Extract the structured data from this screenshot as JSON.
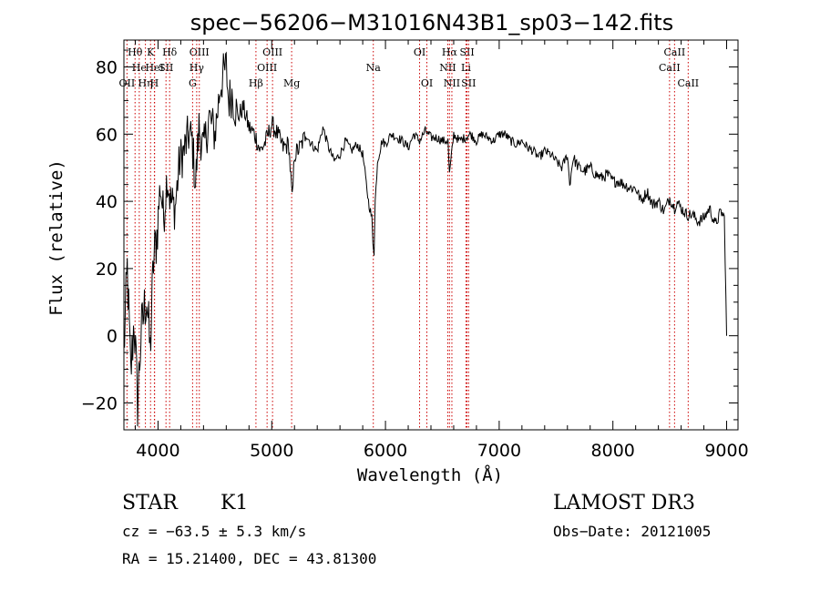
{
  "chart_data": {
    "type": "line",
    "title": "spec−56206−M31016N43B1_sp03−142.fits",
    "xlabel": "Wavelength (Å)",
    "ylabel": "Flux (relative)",
    "xlim": [
      3700,
      9100
    ],
    "ylim": [
      -28,
      88
    ],
    "xticks": [
      4000,
      5000,
      6000,
      7000,
      8000,
      9000
    ],
    "yticks": [
      -20,
      0,
      20,
      40,
      60,
      80
    ],
    "spectrum": {
      "x": [
        3700,
        3730,
        3760,
        3790,
        3820,
        3850,
        3880,
        3900,
        3930,
        3960,
        3990,
        4020,
        4050,
        4080,
        4110,
        4150,
        4190,
        4230,
        4270,
        4300,
        4330,
        4360,
        4400,
        4450,
        4500,
        4550,
        4600,
        4620,
        4650,
        4700,
        4750,
        4800,
        4850,
        4900,
        4950,
        5000,
        5050,
        5100,
        5150,
        5180,
        5200,
        5250,
        5300,
        5350,
        5400,
        5450,
        5500,
        5550,
        5600,
        5650,
        5700,
        5750,
        5800,
        5850,
        5880,
        5890,
        5900,
        5910,
        5930,
        5970,
        6000,
        6050,
        6100,
        6150,
        6200,
        6250,
        6300,
        6350,
        6400,
        6450,
        6500,
        6550,
        6563,
        6600,
        6650,
        6700,
        6750,
        6800,
        6850,
        6900,
        6950,
        7000,
        7050,
        7100,
        7150,
        7200,
        7250,
        7300,
        7350,
        7400,
        7450,
        7500,
        7550,
        7600,
        7620,
        7650,
        7700,
        7750,
        7800,
        7850,
        7900,
        7950,
        8000,
        8050,
        8100,
        8150,
        8200,
        8250,
        8300,
        8350,
        8400,
        8450,
        8500,
        8542,
        8560,
        8600,
        8650,
        8700,
        8750,
        8800,
        8850,
        8900,
        8950,
        8980,
        9000
      ],
      "y": [
        -5,
        20,
        -12,
        5,
        -20,
        0,
        8,
        12,
        -5,
        22,
        30,
        45,
        35,
        48,
        40,
        38,
        52,
        55,
        60,
        58,
        45,
        62,
        55,
        65,
        60,
        75,
        80,
        70,
        72,
        65,
        68,
        62,
        60,
        55,
        58,
        63,
        60,
        56,
        57,
        40,
        54,
        56,
        60,
        57,
        55,
        62,
        56,
        52,
        54,
        58,
        55,
        57,
        54,
        40,
        35,
        28,
        25,
        40,
        52,
        58,
        57,
        60,
        59,
        58,
        56,
        60,
        58,
        61,
        59,
        59,
        58,
        58,
        48,
        60,
        58,
        59,
        60,
        58,
        60,
        59,
        58,
        60,
        60,
        58,
        57,
        58,
        56,
        55,
        53,
        55,
        54,
        52,
        50,
        54,
        45,
        53,
        50,
        49,
        50,
        48,
        47,
        48,
        46,
        46,
        45,
        44,
        44,
        40,
        43,
        39,
        40,
        37,
        41,
        38,
        40,
        38,
        36,
        36,
        34,
        35,
        38,
        33,
        37,
        35,
        0
      ]
    },
    "line_markers": [
      {
        "label": "Hθ",
        "x": 3798,
        "row": 1
      },
      {
        "label": "OII",
        "x": 3727,
        "row": 3
      },
      {
        "label": "He",
        "x": 3835,
        "row": 2
      },
      {
        "label": "Hη",
        "x": 3889,
        "row": 3
      },
      {
        "label": "K",
        "x": 3934,
        "row": 1
      },
      {
        "label": "HeI",
        "x": 3970,
        "row": 2
      },
      {
        "label": "SII",
        "x": 4070,
        "row": 2
      },
      {
        "label": "Hδ",
        "x": 4102,
        "row": 1
      },
      {
        "label": "H",
        "x": 3968,
        "row": 3
      },
      {
        "label": "OIII",
        "x": 4363,
        "row": 1
      },
      {
        "label": "Hγ",
        "x": 4340,
        "row": 2
      },
      {
        "label": "G",
        "x": 4304,
        "row": 3
      },
      {
        "label": "Hβ",
        "x": 4861,
        "row": 3
      },
      {
        "label": "OIII",
        "x": 4959,
        "row": 2
      },
      {
        "label": "OIII",
        "x": 5007,
        "row": 1
      },
      {
        "label": "Mg",
        "x": 5175,
        "row": 3
      },
      {
        "label": "Na",
        "x": 5893,
        "row": 2
      },
      {
        "label": "OI",
        "x": 6300,
        "row": 1
      },
      {
        "label": "OI",
        "x": 6364,
        "row": 3
      },
      {
        "label": "NII",
        "x": 6548,
        "row": 2
      },
      {
        "label": "Hα",
        "x": 6563,
        "row": 1
      },
      {
        "label": "NII",
        "x": 6584,
        "row": 3
      },
      {
        "label": "SII",
        "x": 6717,
        "row": 1
      },
      {
        "label": "Li",
        "x": 6708,
        "row": 2
      },
      {
        "label": "SII",
        "x": 6731,
        "row": 3
      },
      {
        "label": "CaII",
        "x": 8498,
        "row": 2
      },
      {
        "label": "CaII",
        "x": 8542,
        "row": 1
      },
      {
        "label": "CaII",
        "x": 8662,
        "row": 3
      }
    ]
  },
  "info": {
    "class_label": "STAR",
    "subclass": "K1",
    "survey": "LAMOST DR3",
    "cz": "cz = −63.5 ± 5.3 km/s",
    "obs_date": "Obs−Date: 20121005",
    "coords": "RA =  15.21400, DEC =  43.81300"
  },
  "colors": {
    "marker": "#cc0000",
    "line": "#000000",
    "axes": "#000000"
  }
}
